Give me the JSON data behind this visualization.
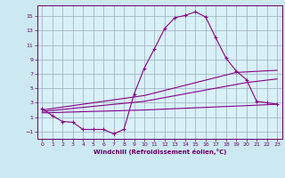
{
  "background_color": "#cce8f0",
  "plot_bg_color": "#d8f0f8",
  "line_color": "#880088",
  "grid_color": "#99aabb",
  "xlabel": "Windchill (Refroidissement éolien,°C)",
  "xlabel_color": "#660066",
  "tick_color": "#660066",
  "xlim": [
    -0.5,
    23.5
  ],
  "ylim": [
    -2.0,
    16.5
  ],
  "yticks": [
    -1,
    1,
    3,
    5,
    7,
    9,
    11,
    13,
    15
  ],
  "xticks": [
    0,
    1,
    2,
    3,
    4,
    5,
    6,
    7,
    8,
    9,
    10,
    11,
    12,
    13,
    14,
    15,
    16,
    17,
    18,
    19,
    20,
    21,
    22,
    23
  ],
  "line1_x": [
    0,
    1,
    2,
    3,
    4,
    5,
    6,
    7,
    8,
    9,
    10,
    11,
    12,
    13,
    14,
    15,
    16,
    17,
    18,
    19,
    20,
    21,
    22,
    23
  ],
  "line1_y": [
    2.2,
    1.2,
    0.4,
    0.3,
    -0.7,
    -0.7,
    -0.7,
    -1.3,
    -0.7,
    4.2,
    7.8,
    10.5,
    13.3,
    14.8,
    15.1,
    15.6,
    14.9,
    12.0,
    9.2,
    7.4,
    6.2,
    3.2,
    3.0,
    2.8
  ],
  "line2_x": [
    0,
    10,
    19,
    23
  ],
  "line2_y": [
    2.0,
    4.0,
    7.2,
    7.5
  ],
  "line3_x": [
    0,
    10,
    20,
    23
  ],
  "line3_y": [
    1.8,
    3.2,
    5.8,
    6.3
  ],
  "line4_x": [
    0,
    10,
    20,
    23
  ],
  "line4_y": [
    1.6,
    2.0,
    2.6,
    2.8
  ]
}
